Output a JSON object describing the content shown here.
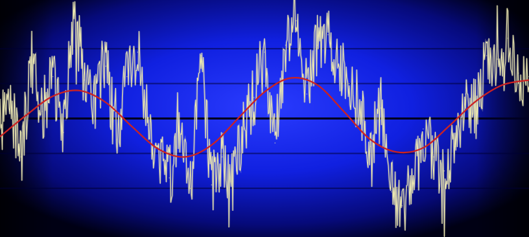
{
  "chart_data": {
    "type": "line",
    "title": "",
    "xlabel": "",
    "ylabel": "",
    "grid": true,
    "legend": "none",
    "xlim": [
      0,
      1
    ],
    "ylim": [
      -1.5,
      1.5
    ],
    "gridlines_y": [
      -1,
      -0.5,
      0,
      0.5,
      1
    ],
    "axis_line_y": 0,
    "series": [
      {
        "style": "noisy",
        "color": "#e8e4b0",
        "x": [
          0.0,
          0.02,
          0.04,
          0.06,
          0.08,
          0.1,
          0.12,
          0.14,
          0.16,
          0.18,
          0.2,
          0.22,
          0.24,
          0.26,
          0.28,
          0.3,
          0.32,
          0.34,
          0.36,
          0.38,
          0.4,
          0.42,
          0.44,
          0.46,
          0.48,
          0.5,
          0.52,
          0.54,
          0.56,
          0.58,
          0.6,
          0.62,
          0.64,
          0.66,
          0.68,
          0.7,
          0.72,
          0.74,
          0.76,
          0.78,
          0.8,
          0.82,
          0.84,
          0.86,
          0.88,
          0.9,
          0.92,
          0.94,
          0.96,
          0.98,
          1.0
        ],
        "y": [
          -0.15,
          0.25,
          -0.55,
          0.85,
          0.1,
          0.6,
          -0.2,
          1.55,
          0.55,
          0.2,
          0.75,
          -0.3,
          0.6,
          0.95,
          -0.1,
          -0.45,
          -0.85,
          -0.2,
          -1.0,
          0.9,
          -0.95,
          -0.55,
          -0.9,
          -0.15,
          0.3,
          0.95,
          -0.35,
          1.05,
          1.4,
          0.35,
          1.05,
          1.2,
          0.75,
          0.5,
          0.2,
          -0.4,
          0.15,
          -1.05,
          -1.25,
          -0.95,
          -0.15,
          -0.55,
          -0.75,
          -0.4,
          0.35,
          0.1,
          0.9,
          0.85,
          1.15,
          0.65,
          0.6
        ]
      },
      {
        "style": "smooth",
        "color": "#cc2222",
        "x": [
          0.0,
          0.05,
          0.1,
          0.15,
          0.2,
          0.25,
          0.3,
          0.35,
          0.4,
          0.45,
          0.5,
          0.55,
          0.6,
          0.65,
          0.7,
          0.75,
          0.8,
          0.85,
          0.9,
          0.95,
          1.0
        ],
        "y": [
          -0.26,
          0.05,
          0.32,
          0.4,
          0.23,
          -0.12,
          -0.44,
          -0.55,
          -0.38,
          0.0,
          0.38,
          0.58,
          0.48,
          0.1,
          -0.3,
          -0.48,
          -0.42,
          -0.1,
          0.25,
          0.48,
          0.55
        ]
      }
    ]
  },
  "colors": {
    "background_outer": "#000010",
    "background_center": "#1a2cff",
    "gridline": "#000033",
    "axis": "#000022"
  }
}
